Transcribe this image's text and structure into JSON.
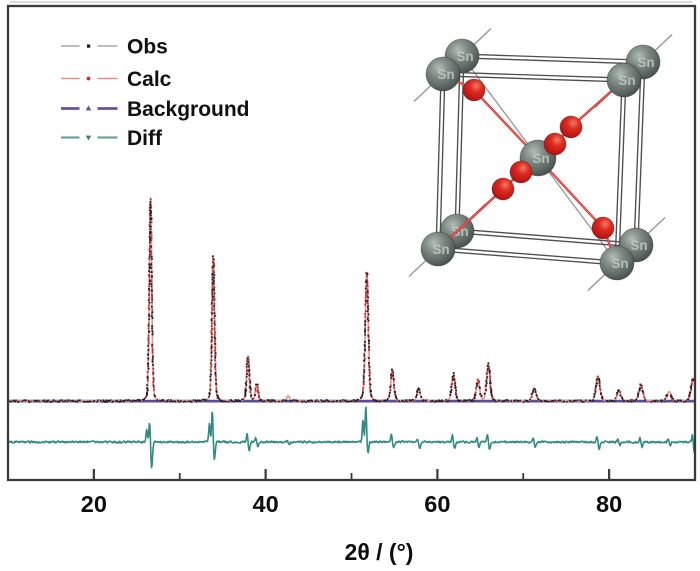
{
  "figure": {
    "kind": "powder XRD Rietveld refinement figure with crystal-structure inset",
    "background_color": "#ffffff",
    "frame_color": "#3a3a3a"
  },
  "legend": {
    "items": [
      {
        "label": "Obs",
        "line_color": "#a8a8a8",
        "line_width": 1.6,
        "marker": "square",
        "marker_color": "#151515"
      },
      {
        "label": "Calc",
        "line_color": "#e5908a",
        "line_width": 1.6,
        "marker": "circle",
        "marker_color": "#c22e40"
      },
      {
        "label": "Background",
        "line_color": "#5e54a6",
        "line_width": 2.7,
        "marker": "triangle-up",
        "marker_color": "#5e54a6"
      },
      {
        "label": "Diff",
        "line_color": "#6ba39c",
        "line_width": 2.3,
        "marker": "triangle-down",
        "marker_color": "#35897f"
      }
    ],
    "text_color": "#101010"
  },
  "axis": {
    "xlabel": "2θ / (°)",
    "x_min": 10,
    "x_max": 90,
    "major_ticks": [
      20,
      40,
      60,
      80
    ],
    "major_tick_labels": [
      "20",
      "40",
      "60",
      "80"
    ],
    "minor_ticks": [
      30,
      50,
      70
    ],
    "label_color": "#0d0d0d"
  },
  "chart_data": {
    "type": "line",
    "description": "Powder X-ray diffraction Rietveld refinement: observed (black dots), calculated (salmon line with red dot markers), flat background (slate-blue line) and difference residual (teal line) versus 2-theta",
    "xlabel": "2θ / (°)",
    "x_range": [
      10,
      90
    ],
    "y_units": "arbitrary intensity (no y-axis scale shown)",
    "legend_position": "upper-left inside plot",
    "grid": false,
    "series": [
      {
        "name": "Obs",
        "style": "scatter of small black points tracing the diffraction pattern"
      },
      {
        "name": "Calc",
        "style": "salmon continuous profile with darker red dot markers"
      },
      {
        "name": "Background",
        "style": "flat slate-blue horizontal line under the whole pattern"
      },
      {
        "name": "Diff",
        "style": "teal residual trace on its own flat baseline below the pattern"
      }
    ],
    "peaks": [
      {
        "two_theta": 26.6,
        "intensity": 100,
        "diff_up": 10.8,
        "diff_down": 13.2
      },
      {
        "two_theta": 33.9,
        "intensity": 71,
        "diff_up": 15.7,
        "diff_down": 8.8
      },
      {
        "two_theta": 37.95,
        "intensity": 22,
        "diff_up": 4.4,
        "diff_down": 4.4
      },
      {
        "two_theta": 38.97,
        "intensity": 8,
        "diff_up": 2.0,
        "diff_down": 2.0
      },
      {
        "two_theta": 42.63,
        "intensity": 2.5,
        "diff_up": 1.0,
        "diff_down": 1.0
      },
      {
        "two_theta": 51.78,
        "intensity": 64,
        "diff_up": 18.1,
        "diff_down": 5.4
      },
      {
        "two_theta": 54.76,
        "intensity": 15,
        "diff_up": 3.9,
        "diff_down": 2.9
      },
      {
        "two_theta": 57.82,
        "intensity": 6,
        "diff_up": 1.5,
        "diff_down": 2.9
      },
      {
        "two_theta": 61.87,
        "intensity": 13,
        "diff_up": 3.4,
        "diff_down": 3.4
      },
      {
        "two_theta": 64.72,
        "intensity": 10,
        "diff_up": 2.5,
        "diff_down": 2.5
      },
      {
        "two_theta": 65.94,
        "intensity": 18,
        "diff_up": 3.9,
        "diff_down": 3.9
      },
      {
        "two_theta": 71.28,
        "intensity": 6.5,
        "diff_up": 2.0,
        "diff_down": 2.5
      },
      {
        "two_theta": 78.71,
        "intensity": 12,
        "diff_up": 2.9,
        "diff_down": 3.4
      },
      {
        "two_theta": 81.14,
        "intensity": 4.5,
        "diff_up": 1.5,
        "diff_down": 1.5
      },
      {
        "two_theta": 83.7,
        "intensity": 7.5,
        "diff_up": 2.5,
        "diff_down": 2.5
      },
      {
        "two_theta": 87.0,
        "intensity": 4.5,
        "diff_up": 1.5,
        "diff_down": 1.5
      },
      {
        "two_theta": 89.8,
        "intensity": 11,
        "diff_up": 3.9,
        "diff_down": 4.9
      }
    ],
    "colors": {
      "obs": "#12121c",
      "calc_line": "#e9978e",
      "calc_marker": "#b23430",
      "background_line": "#584e9d",
      "diff": "#2f8b83"
    }
  },
  "inset": {
    "kind": "ball-and-stick rutile-type unit cell",
    "atom_label": "Sn",
    "atom_label_color": "#c4cec9",
    "metal_color": "#6f7b77",
    "oxygen_color": "#d21e1e",
    "bond_color": "#d42020",
    "edge_color": "#4e4e4e",
    "thin_line_color": "#979797",
    "cell": {
      "front_corners": [
        [
          443,
          74
        ],
        [
          624,
          80
        ],
        [
          617,
          263
        ],
        [
          438,
          249
        ]
      ],
      "depth_vector": [
        19,
        -18
      ],
      "center_atom": [
        538,
        158
      ]
    },
    "metal_radius": 17,
    "center_radius": 18,
    "oxygen_radius": 11,
    "oxygen_atoms": [
      [
        474,
        90
      ],
      [
        571,
        127
      ],
      [
        555,
        144
      ],
      [
        521,
        172
      ],
      [
        503,
        189
      ],
      [
        603,
        228
      ]
    ],
    "bonds": [
      [
        [
          443,
          74
        ],
        [
          474,
          90
        ],
        [
          538,
          158
        ]
      ],
      [
        [
          538,
          158
        ],
        [
          603,
          228
        ],
        [
          617,
          263
        ]
      ],
      [
        [
          624,
          80
        ],
        [
          571,
          127
        ],
        [
          555,
          144
        ],
        [
          538,
          158
        ]
      ],
      [
        [
          538,
          158
        ],
        [
          521,
          172
        ],
        [
          503,
          189
        ],
        [
          438,
          249
        ]
      ]
    ]
  }
}
